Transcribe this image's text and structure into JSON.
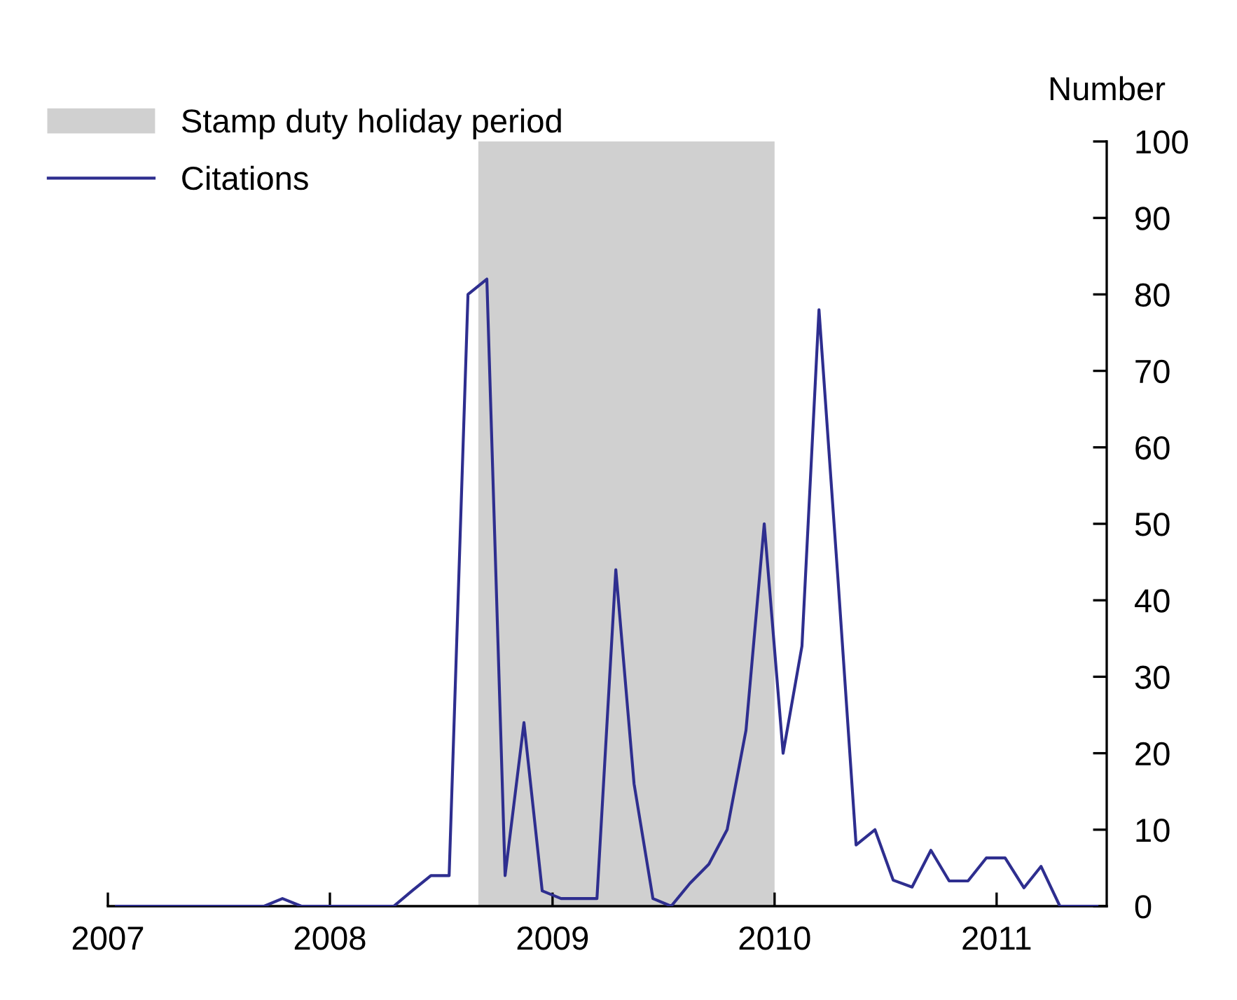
{
  "chart_data": {
    "type": "line",
    "ylabel": "Number",
    "x": [
      "2007-01-15",
      "2007-02-15",
      "2007-03-15",
      "2007-04-15",
      "2007-05-15",
      "2007-06-15",
      "2007-07-15",
      "2007-08-15",
      "2007-09-15",
      "2007-10-15",
      "2007-11-15",
      "2007-12-15",
      "2008-01-15",
      "2008-02-15",
      "2008-03-15",
      "2008-04-15",
      "2008-05-15",
      "2008-06-15",
      "2008-07-15",
      "2008-08-15",
      "2008-09-15",
      "2008-10-15",
      "2008-11-15",
      "2008-12-15",
      "2009-01-15",
      "2009-02-15",
      "2009-03-15",
      "2009-04-15",
      "2009-05-15",
      "2009-06-15",
      "2009-07-15",
      "2009-08-15",
      "2009-09-15",
      "2009-10-15",
      "2009-11-15",
      "2009-12-15",
      "2010-01-15",
      "2010-02-15",
      "2010-03-15",
      "2010-04-15",
      "2010-05-15",
      "2010-06-15",
      "2010-07-15",
      "2010-08-15",
      "2010-09-15",
      "2010-10-15",
      "2010-11-15",
      "2010-12-15",
      "2011-01-15",
      "2011-02-15",
      "2011-03-15",
      "2011-04-15",
      "2011-05-15",
      "2011-06-15"
    ],
    "series": [
      {
        "name": "Citations",
        "color": "#2e2e8f",
        "values": [
          0,
          0,
          0,
          0,
          0,
          0,
          0,
          0,
          0,
          1,
          0,
          0,
          0,
          0,
          0,
          0,
          2,
          4,
          4,
          80,
          82,
          4,
          24,
          2,
          1,
          1,
          1,
          44,
          16,
          1,
          0,
          3,
          5.5,
          10,
          23,
          50,
          20,
          34,
          78,
          43,
          8,
          10,
          3.4,
          2.5,
          7.3,
          3.3,
          3.3,
          6.3,
          6.3,
          2.4,
          5.2,
          0,
          0,
          0
        ]
      }
    ],
    "bands": [
      {
        "axis": "x",
        "from": "2008-09-01",
        "to": "2010-01-01",
        "label": "Stamp duty holiday period",
        "color": "#d0d0d0"
      }
    ],
    "xlim": [
      "2007-01-01",
      "2011-07-01"
    ],
    "xticks": [
      {
        "value": "2007-01-01",
        "label": "2007"
      },
      {
        "value": "2008-01-01",
        "label": "2008"
      },
      {
        "value": "2009-01-01",
        "label": "2009"
      },
      {
        "value": "2010-01-01",
        "label": "2010"
      },
      {
        "value": "2011-01-01",
        "label": "2011"
      }
    ],
    "ylim": [
      0,
      100
    ],
    "yticks": [
      0,
      10,
      20,
      30,
      40,
      50,
      60,
      70,
      80,
      90,
      100
    ],
    "grid": false,
    "legend": "top left",
    "marker": "none",
    "line_style": "solid"
  }
}
